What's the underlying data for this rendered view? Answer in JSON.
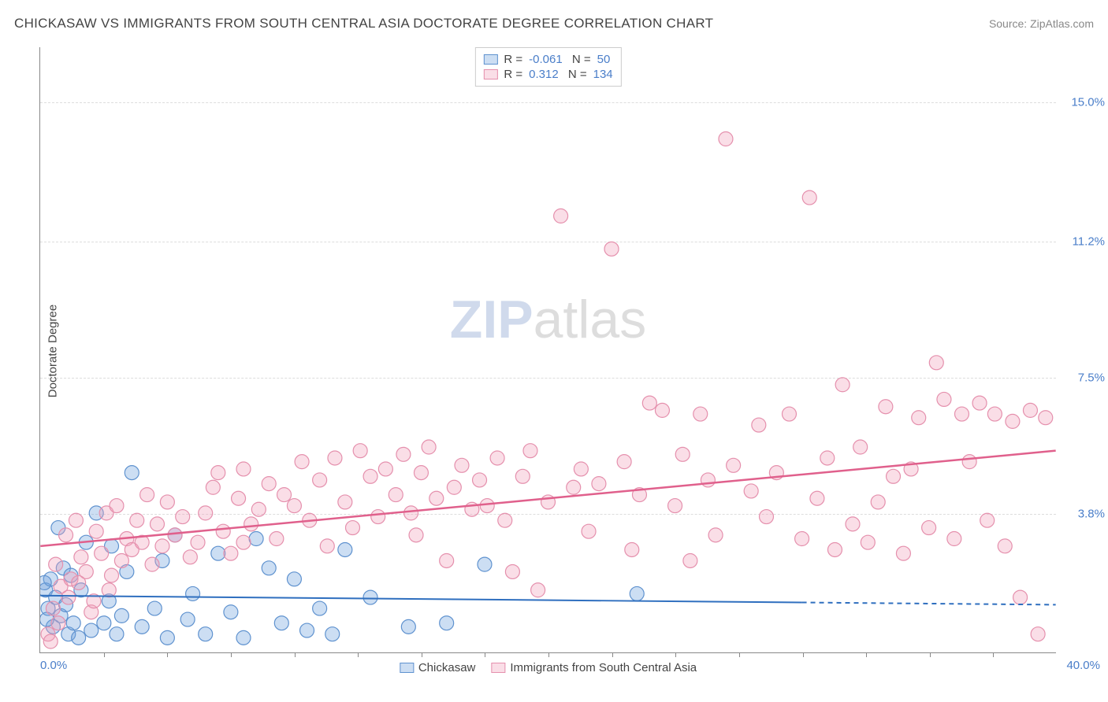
{
  "title": "CHICKASAW VS IMMIGRANTS FROM SOUTH CENTRAL ASIA DOCTORATE DEGREE CORRELATION CHART",
  "source": "Source: ZipAtlas.com",
  "y_axis_label": "Doctorate Degree",
  "watermark": {
    "first": "ZIP",
    "second": "atlas"
  },
  "chart": {
    "type": "scatter",
    "xlim": [
      0,
      40
    ],
    "ylim": [
      0,
      16.5
    ],
    "background_color": "#ffffff",
    "grid_color": "#dddddd",
    "axis_color": "#888888",
    "tick_label_color": "#4a7ec9",
    "yticks": [
      {
        "value": 3.8,
        "label": "3.8%"
      },
      {
        "value": 7.5,
        "label": "7.5%"
      },
      {
        "value": 11.2,
        "label": "11.2%"
      },
      {
        "value": 15.0,
        "label": "15.0%"
      }
    ],
    "xticks_major": [
      0,
      40
    ],
    "xticks_labels": [
      {
        "value": 0,
        "label": "0.0%"
      },
      {
        "value": 40,
        "label": "40.0%"
      }
    ],
    "xticks_minor_step": 2.5,
    "series": [
      {
        "key": "chickasaw",
        "label": "Chickasaw",
        "R": "-0.061",
        "N": "50",
        "marker_color_fill": "rgba(110,160,220,0.35)",
        "marker_color_stroke": "#5f92cf",
        "marker_radius": 9,
        "line_color": "#2f6fbf",
        "line_width": 2,
        "trend": {
          "x0": 0,
          "y0": 1.55,
          "x1": 40,
          "y1": 1.3,
          "solid_until": 30
        },
        "points": [
          [
            0.2,
            1.7
          ],
          [
            0.3,
            1.2
          ],
          [
            0.4,
            2.0
          ],
          [
            0.5,
            0.7
          ],
          [
            0.6,
            1.5
          ],
          [
            0.7,
            3.4
          ],
          [
            0.8,
            1.0
          ],
          [
            0.9,
            2.3
          ],
          [
            1.0,
            1.3
          ],
          [
            1.1,
            0.5
          ],
          [
            1.2,
            2.1
          ],
          [
            1.3,
            0.8
          ],
          [
            1.5,
            0.4
          ],
          [
            1.6,
            1.7
          ],
          [
            1.8,
            3.0
          ],
          [
            2.0,
            0.6
          ],
          [
            2.2,
            3.8
          ],
          [
            2.5,
            0.8
          ],
          [
            2.7,
            1.4
          ],
          [
            2.8,
            2.9
          ],
          [
            3.0,
            0.5
          ],
          [
            3.2,
            1.0
          ],
          [
            3.4,
            2.2
          ],
          [
            3.6,
            4.9
          ],
          [
            4.0,
            0.7
          ],
          [
            4.5,
            1.2
          ],
          [
            4.8,
            2.5
          ],
          [
            5.0,
            0.4
          ],
          [
            5.3,
            3.2
          ],
          [
            5.8,
            0.9
          ],
          [
            6.0,
            1.6
          ],
          [
            6.5,
            0.5
          ],
          [
            7.0,
            2.7
          ],
          [
            7.5,
            1.1
          ],
          [
            8.0,
            0.4
          ],
          [
            8.5,
            3.1
          ],
          [
            9.0,
            2.3
          ],
          [
            9.5,
            0.8
          ],
          [
            10.0,
            2.0
          ],
          [
            10.5,
            0.6
          ],
          [
            11.0,
            1.2
          ],
          [
            11.5,
            0.5
          ],
          [
            12.0,
            2.8
          ],
          [
            13.0,
            1.5
          ],
          [
            14.5,
            0.7
          ],
          [
            16.0,
            0.8
          ],
          [
            17.5,
            2.4
          ],
          [
            23.5,
            1.6
          ],
          [
            0.15,
            1.9
          ],
          [
            0.25,
            0.9
          ]
        ]
      },
      {
        "key": "immigrants",
        "label": "Immigrants from South Central Asia",
        "R": "0.312",
        "N": "134",
        "marker_color_fill": "rgba(240,160,185,0.35)",
        "marker_color_stroke": "#e590ad",
        "marker_radius": 9,
        "line_color": "#e0608c",
        "line_width": 2.5,
        "trend": {
          "x0": 0,
          "y0": 2.9,
          "x1": 40,
          "y1": 5.5,
          "solid_until": 40
        },
        "points": [
          [
            0.3,
            0.5
          ],
          [
            0.5,
            1.2
          ],
          [
            0.6,
            2.4
          ],
          [
            0.8,
            1.8
          ],
          [
            1.0,
            3.2
          ],
          [
            1.2,
            2.0
          ],
          [
            1.4,
            3.6
          ],
          [
            1.6,
            2.6
          ],
          [
            1.8,
            2.2
          ],
          [
            2.0,
            1.1
          ],
          [
            2.2,
            3.3
          ],
          [
            2.4,
            2.7
          ],
          [
            2.6,
            3.8
          ],
          [
            2.8,
            2.1
          ],
          [
            3.0,
            4.0
          ],
          [
            3.2,
            2.5
          ],
          [
            3.4,
            3.1
          ],
          [
            3.6,
            2.8
          ],
          [
            3.8,
            3.6
          ],
          [
            4.0,
            3.0
          ],
          [
            4.2,
            4.3
          ],
          [
            4.4,
            2.4
          ],
          [
            4.6,
            3.5
          ],
          [
            4.8,
            2.9
          ],
          [
            5.0,
            4.1
          ],
          [
            5.3,
            3.2
          ],
          [
            5.6,
            3.7
          ],
          [
            5.9,
            2.6
          ],
          [
            6.2,
            3.0
          ],
          [
            6.5,
            3.8
          ],
          [
            6.8,
            4.5
          ],
          [
            7.0,
            4.9
          ],
          [
            7.2,
            3.3
          ],
          [
            7.5,
            2.7
          ],
          [
            7.8,
            4.2
          ],
          [
            8.0,
            5.0
          ],
          [
            8.3,
            3.5
          ],
          [
            8.6,
            3.9
          ],
          [
            9.0,
            4.6
          ],
          [
            9.3,
            3.1
          ],
          [
            9.6,
            4.3
          ],
          [
            10.0,
            4.0
          ],
          [
            10.3,
            5.2
          ],
          [
            10.6,
            3.6
          ],
          [
            11.0,
            4.7
          ],
          [
            11.3,
            2.9
          ],
          [
            11.6,
            5.3
          ],
          [
            12.0,
            4.1
          ],
          [
            12.3,
            3.4
          ],
          [
            12.6,
            5.5
          ],
          [
            13.0,
            4.8
          ],
          [
            13.3,
            3.7
          ],
          [
            13.6,
            5.0
          ],
          [
            14.0,
            4.3
          ],
          [
            14.3,
            5.4
          ],
          [
            14.6,
            3.8
          ],
          [
            15.0,
            4.9
          ],
          [
            15.3,
            5.6
          ],
          [
            15.6,
            4.2
          ],
          [
            16.0,
            2.5
          ],
          [
            16.3,
            4.5
          ],
          [
            16.6,
            5.1
          ],
          [
            17.0,
            3.9
          ],
          [
            17.3,
            4.7
          ],
          [
            17.6,
            4.0
          ],
          [
            18.0,
            5.3
          ],
          [
            18.3,
            3.6
          ],
          [
            18.6,
            2.2
          ],
          [
            19.0,
            4.8
          ],
          [
            19.3,
            5.5
          ],
          [
            19.6,
            1.7
          ],
          [
            20.0,
            4.1
          ],
          [
            20.5,
            11.9
          ],
          [
            21.0,
            4.5
          ],
          [
            21.3,
            5.0
          ],
          [
            21.6,
            3.3
          ],
          [
            22.0,
            4.6
          ],
          [
            22.5,
            11.0
          ],
          [
            23.0,
            5.2
          ],
          [
            23.3,
            2.8
          ],
          [
            23.6,
            4.3
          ],
          [
            24.0,
            6.8
          ],
          [
            24.5,
            6.6
          ],
          [
            25.0,
            4.0
          ],
          [
            25.3,
            5.4
          ],
          [
            25.6,
            2.5
          ],
          [
            26.0,
            6.5
          ],
          [
            26.3,
            4.7
          ],
          [
            26.6,
            3.2
          ],
          [
            27.0,
            14.0
          ],
          [
            27.3,
            5.1
          ],
          [
            28.0,
            4.4
          ],
          [
            28.3,
            6.2
          ],
          [
            28.6,
            3.7
          ],
          [
            29.0,
            4.9
          ],
          [
            29.5,
            6.5
          ],
          [
            30.0,
            3.1
          ],
          [
            30.3,
            12.4
          ],
          [
            30.6,
            4.2
          ],
          [
            31.0,
            5.3
          ],
          [
            31.3,
            2.8
          ],
          [
            31.6,
            7.3
          ],
          [
            32.0,
            3.5
          ],
          [
            32.3,
            5.6
          ],
          [
            32.6,
            3.0
          ],
          [
            33.0,
            4.1
          ],
          [
            33.3,
            6.7
          ],
          [
            33.6,
            4.8
          ],
          [
            34.0,
            2.7
          ],
          [
            34.3,
            5.0
          ],
          [
            34.6,
            6.4
          ],
          [
            35.0,
            3.4
          ],
          [
            35.3,
            7.9
          ],
          [
            35.6,
            6.9
          ],
          [
            36.0,
            3.1
          ],
          [
            36.3,
            6.5
          ],
          [
            36.6,
            5.2
          ],
          [
            37.0,
            6.8
          ],
          [
            37.3,
            3.6
          ],
          [
            37.6,
            6.5
          ],
          [
            38.0,
            2.9
          ],
          [
            38.3,
            6.3
          ],
          [
            38.6,
            1.5
          ],
          [
            39.0,
            6.6
          ],
          [
            39.3,
            0.5
          ],
          [
            39.6,
            6.4
          ],
          [
            0.4,
            0.3
          ],
          [
            0.7,
            0.8
          ],
          [
            1.1,
            1.5
          ],
          [
            1.5,
            1.9
          ],
          [
            2.1,
            1.4
          ],
          [
            2.7,
            1.7
          ],
          [
            8.0,
            3.0
          ],
          [
            14.8,
            3.2
          ]
        ]
      }
    ],
    "legend_top": true,
    "legend_bottom": true
  }
}
